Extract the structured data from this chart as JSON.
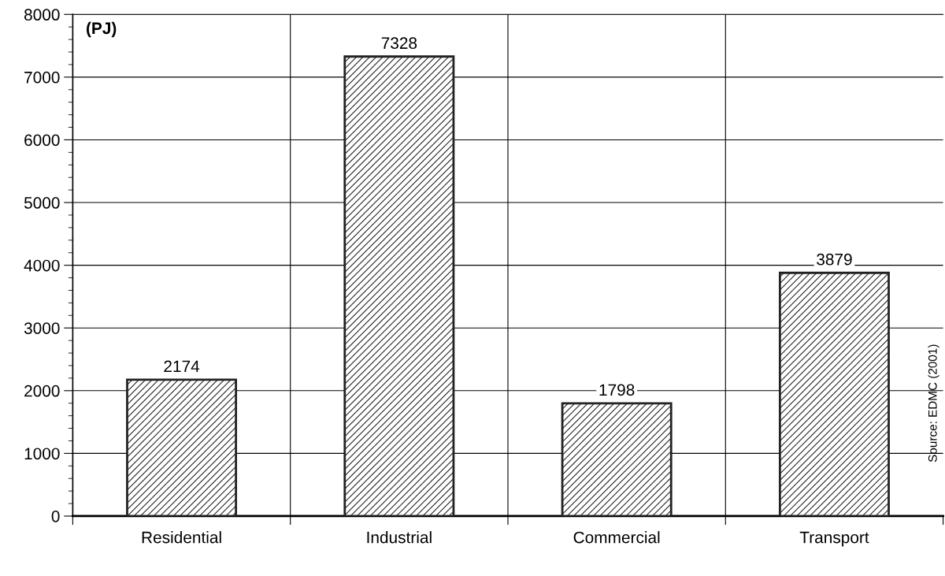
{
  "chart_data": {
    "type": "bar",
    "ylabel": "(PJ)",
    "categories": [
      "Residential",
      "Industrial",
      "Commercial",
      "Transport"
    ],
    "values": [
      2174,
      7328,
      1798,
      3879
    ],
    "color": "#222222",
    "ylim": [
      0,
      8000
    ],
    "yticks": [
      0,
      1000,
      2000,
      3000,
      4000,
      5000,
      6000,
      7000,
      8000
    ],
    "grid": true,
    "data_labels": true,
    "annotations": [
      "Source: EDMC (2001)"
    ]
  }
}
